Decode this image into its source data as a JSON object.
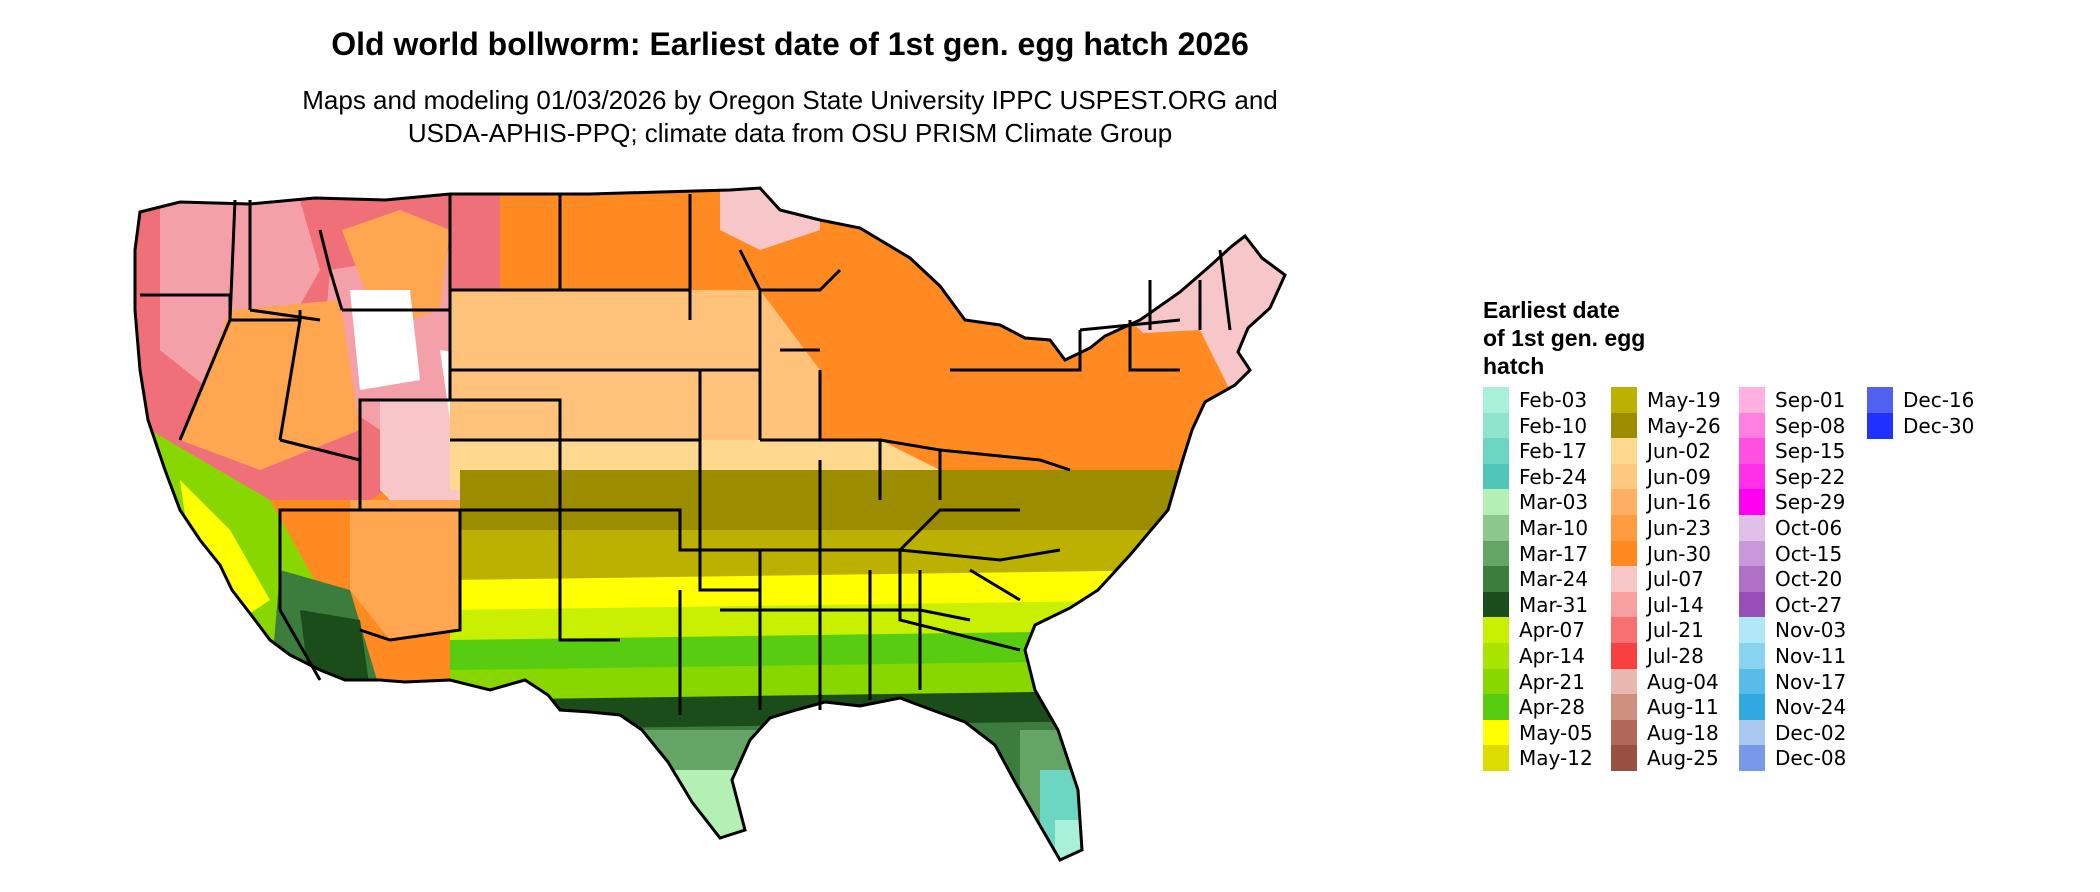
{
  "title": "Old world bollworm: Earliest date of 1st gen. egg hatch 2026",
  "subtitle_line1": "Maps and modeling 01/03/2026 by Oregon State University IPPC USPEST.ORG and",
  "subtitle_line2": "USDA-APHIS-PPQ; climate data from OSU PRISM Climate Group",
  "legend": {
    "title_line1": "Earliest date",
    "title_line2": "of 1st gen. egg",
    "title_line3": "hatch",
    "columns": [
      [
        {
          "label": "Feb-03",
          "color": "#a8f0d8"
        },
        {
          "label": "Feb-10",
          "color": "#8ee4cc"
        },
        {
          "label": "Feb-17",
          "color": "#6dd6c2"
        },
        {
          "label": "Feb-24",
          "color": "#4fc6ba"
        },
        {
          "label": "Mar-03",
          "color": "#b4f0b4"
        },
        {
          "label": "Mar-10",
          "color": "#8cc88c"
        },
        {
          "label": "Mar-17",
          "color": "#64a464"
        },
        {
          "label": "Mar-24",
          "color": "#3c7c3c"
        },
        {
          "label": "Mar-31",
          "color": "#1a4d1a"
        },
        {
          "label": "Apr-07",
          "color": "#c8f000"
        },
        {
          "label": "Apr-14",
          "color": "#a8e400"
        },
        {
          "label": "Apr-21",
          "color": "#88d800"
        },
        {
          "label": "Apr-28",
          "color": "#58cc10"
        },
        {
          "label": "May-05",
          "color": "#ffff00"
        },
        {
          "label": "May-12",
          "color": "#dcdc00"
        }
      ],
      [
        {
          "label": "May-19",
          "color": "#bcb000"
        },
        {
          "label": "May-26",
          "color": "#9c8c00"
        },
        {
          "label": "Jun-02",
          "color": "#ffd890"
        },
        {
          "label": "Jun-09",
          "color": "#ffc880"
        },
        {
          "label": "Jun-16",
          "color": "#ffb060"
        },
        {
          "label": "Jun-23",
          "color": "#ff9c40"
        },
        {
          "label": "Jun-30",
          "color": "#ff8820"
        },
        {
          "label": "Jul-07",
          "color": "#f8c8c8"
        },
        {
          "label": "Jul-14",
          "color": "#f8a0a0"
        },
        {
          "label": "Jul-21",
          "color": "#f87070"
        },
        {
          "label": "Jul-28",
          "color": "#f84040"
        },
        {
          "label": "Aug-04",
          "color": "#e8b8b0"
        },
        {
          "label": "Aug-11",
          "color": "#d09080"
        },
        {
          "label": "Aug-18",
          "color": "#b06858"
        },
        {
          "label": "Aug-25",
          "color": "#985040"
        }
      ],
      [
        {
          "label": "Sep-01",
          "color": "#ffb0e0"
        },
        {
          "label": "Sep-08",
          "color": "#ff80e0"
        },
        {
          "label": "Sep-15",
          "color": "#ff50e0"
        },
        {
          "label": "Sep-22",
          "color": "#ff30e8"
        },
        {
          "label": "Sep-29",
          "color": "#ff00f0"
        },
        {
          "label": "Oct-06",
          "color": "#e0c0e8"
        },
        {
          "label": "Oct-15",
          "color": "#c898d8"
        },
        {
          "label": "Oct-20",
          "color": "#b070c8"
        },
        {
          "label": "Oct-27",
          "color": "#9850b8"
        },
        {
          "label": "Nov-03",
          "color": "#b0e8f8"
        },
        {
          "label": "Nov-11",
          "color": "#88d4f0"
        },
        {
          "label": "Nov-17",
          "color": "#58bce8"
        },
        {
          "label": "Nov-24",
          "color": "#30a8e0"
        },
        {
          "label": "Dec-02",
          "color": "#a8c8f0"
        },
        {
          "label": "Dec-08",
          "color": "#7898e8"
        }
      ],
      [
        {
          "label": "Dec-16",
          "color": "#5060f0"
        },
        {
          "label": "Dec-30",
          "color": "#2030ff"
        }
      ]
    ]
  },
  "map_colors": {
    "border": "#000000",
    "northwest_high": "#f0707a",
    "north_pink": "#f4a0a8",
    "light_pink": "#f6c6c8",
    "orange_deep": "#ff8a22",
    "orange_mid": "#ffa650",
    "orange_light": "#ffc27a",
    "peach": "#ffd890",
    "olive_dark": "#9c8c00",
    "olive": "#bcb000",
    "yellow": "#ffff00",
    "lime": "#c8f000",
    "green_bright": "#58cc10",
    "green_mid": "#88d800",
    "forest": "#3c7c3c",
    "dark_green": "#1a4d1a",
    "sage": "#64a464",
    "mint": "#b4f0b4",
    "teal": "#6dd6c2",
    "aqua": "#a8f0d8",
    "white": "#ffffff"
  }
}
